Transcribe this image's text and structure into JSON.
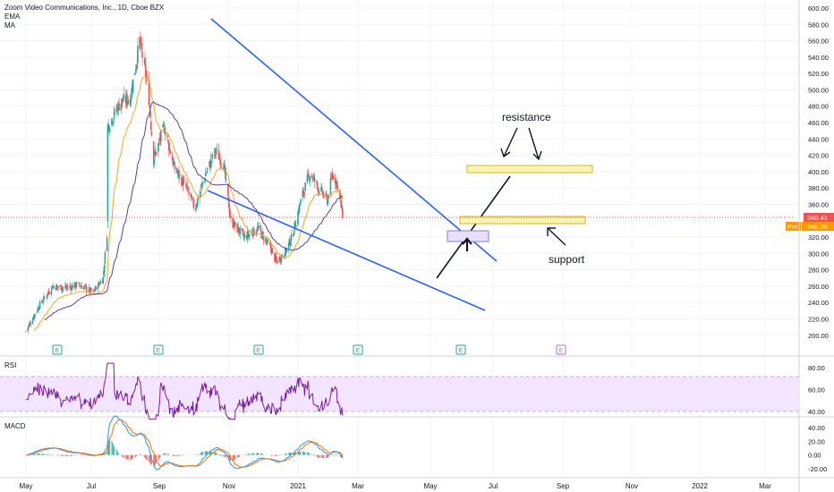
{
  "header": {
    "symbol_line": "Zoom Video Communications, Inc., 1D, Cboe BZX",
    "indicator_1": "EMA",
    "indicator_2": "MA"
  },
  "price_axis": {
    "ticks": [
      "600.00",
      "580.00",
      "560.00",
      "540.00",
      "520.00",
      "500.00",
      "480.00",
      "460.00",
      "440.00",
      "420.00",
      "400.00",
      "380.00",
      "360.00",
      "340.00",
      "320.00",
      "300.00",
      "280.00",
      "260.00",
      "240.00",
      "220.00",
      "200.00"
    ],
    "last_price_label": "348.41",
    "pre_badge": "Pre",
    "pre_price_label": "348.36"
  },
  "time_axis": {
    "ticks": [
      "May",
      "Jul",
      "Sep",
      "Nov",
      "2021",
      "Mar",
      "May",
      "Jul",
      "Sep",
      "Nov",
      "2022",
      "Mar"
    ]
  },
  "earnings_markers": [
    "E",
    "E",
    "E",
    "E",
    "E",
    "E"
  ],
  "annotations": {
    "resistance": "resistance",
    "support": "support"
  },
  "rsi_panel": {
    "title": "RSI",
    "ticks": [
      "80.00",
      "60.00",
      "40.00"
    ]
  },
  "macd_panel": {
    "title": "MACD",
    "ticks": [
      "40.00",
      "20.00",
      "0.00",
      "-20.00"
    ]
  },
  "colors": {
    "up": "#26a69a",
    "down": "#ef5350",
    "ema": "#f5a623",
    "ma": "#5b3fa0",
    "trendline": "#2962ff",
    "rsi_line": "#7b1fa2",
    "rsi_band": "#f3e5ff",
    "macd_line": "#2196f3",
    "signal_line": "#ff6d00",
    "zone_fill": "#fff3b0",
    "zone_stroke": "#c8a800",
    "current_price": "#ef5350",
    "pre_badge": "#ff9800"
  },
  "chart_data": {
    "type": "candlestick",
    "title": "Zoom Video Communications, Inc., 1D, Cboe BZX",
    "ylim": [
      190,
      610
    ],
    "x_ticks": [
      "May",
      "Jul",
      "Sep",
      "Nov",
      "2021",
      "Mar",
      "May",
      "Jul",
      "Sep",
      "Nov",
      "2022",
      "Mar"
    ],
    "price_path": [
      {
        "date": "2020-05-01",
        "close": 205
      },
      {
        "date": "2020-05-20",
        "close": 235
      },
      {
        "date": "2020-06-10",
        "close": 260
      },
      {
        "date": "2020-06-30",
        "close": 258
      },
      {
        "date": "2020-07-20",
        "close": 262
      },
      {
        "date": "2020-08-10",
        "close": 252
      },
      {
        "date": "2020-08-25",
        "close": 270
      },
      {
        "date": "2020-08-31",
        "close": 325
      },
      {
        "date": "2020-09-01",
        "close": 455
      },
      {
        "date": "2020-09-20",
        "close": 485
      },
      {
        "date": "2020-10-05",
        "close": 490
      },
      {
        "date": "2020-10-19",
        "close": 560
      },
      {
        "date": "2020-11-01",
        "close": 500
      },
      {
        "date": "2020-11-09",
        "close": 415
      },
      {
        "date": "2020-11-25",
        "close": 455
      },
      {
        "date": "2020-12-10",
        "close": 405
      },
      {
        "date": "2020-12-28",
        "close": 380
      },
      {
        "date": "2021-01-10",
        "close": 355
      },
      {
        "date": "2021-01-25",
        "close": 395
      },
      {
        "date": "2021-02-10",
        "close": 425
      },
      {
        "date": "2021-02-22",
        "close": 410
      },
      {
        "date": "2021-03-05",
        "close": 340
      },
      {
        "date": "2021-03-25",
        "close": 320
      },
      {
        "date": "2021-04-15",
        "close": 330
      },
      {
        "date": "2021-05-05",
        "close": 305
      },
      {
        "date": "2021-05-12",
        "close": 290
      },
      {
        "date": "2021-05-25",
        "close": 300
      },
      {
        "date": "2021-06-05",
        "close": 320
      },
      {
        "date": "2021-06-20",
        "close": 370
      },
      {
        "date": "2021-07-02",
        "close": 398
      },
      {
        "date": "2021-07-15",
        "close": 380
      },
      {
        "date": "2021-07-28",
        "close": 365
      },
      {
        "date": "2021-08-05",
        "close": 398
      },
      {
        "date": "2021-08-12",
        "close": 385
      },
      {
        "date": "2021-08-20",
        "close": 348
      }
    ],
    "trendlines": [
      {
        "name": "upper channel",
        "from": {
          "date": "2020-10-19",
          "price": 588
        },
        "to": {
          "date": "2021-06-15",
          "price": 305
        }
      },
      {
        "name": "lower channel",
        "from": {
          "date": "2020-10-20",
          "price": 382
        },
        "to": {
          "date": "2021-06-15",
          "price": 233
        }
      },
      {
        "name": "breakout support",
        "from": {
          "date": "2021-05-15",
          "price": 275
        },
        "to": {
          "date": "2021-07-05",
          "price": 397
        }
      }
    ],
    "zones": [
      {
        "name": "resistance",
        "price_low": 397,
        "price_high": 405
      },
      {
        "name": "support",
        "price_low": 342,
        "price_high": 349
      }
    ],
    "last_price": 348.41,
    "pre_market_price": 348.36,
    "rsi_ylim": [
      30,
      90
    ],
    "rsi_band": [
      30,
      70
    ],
    "macd_ylim": [
      -25,
      45
    ]
  }
}
